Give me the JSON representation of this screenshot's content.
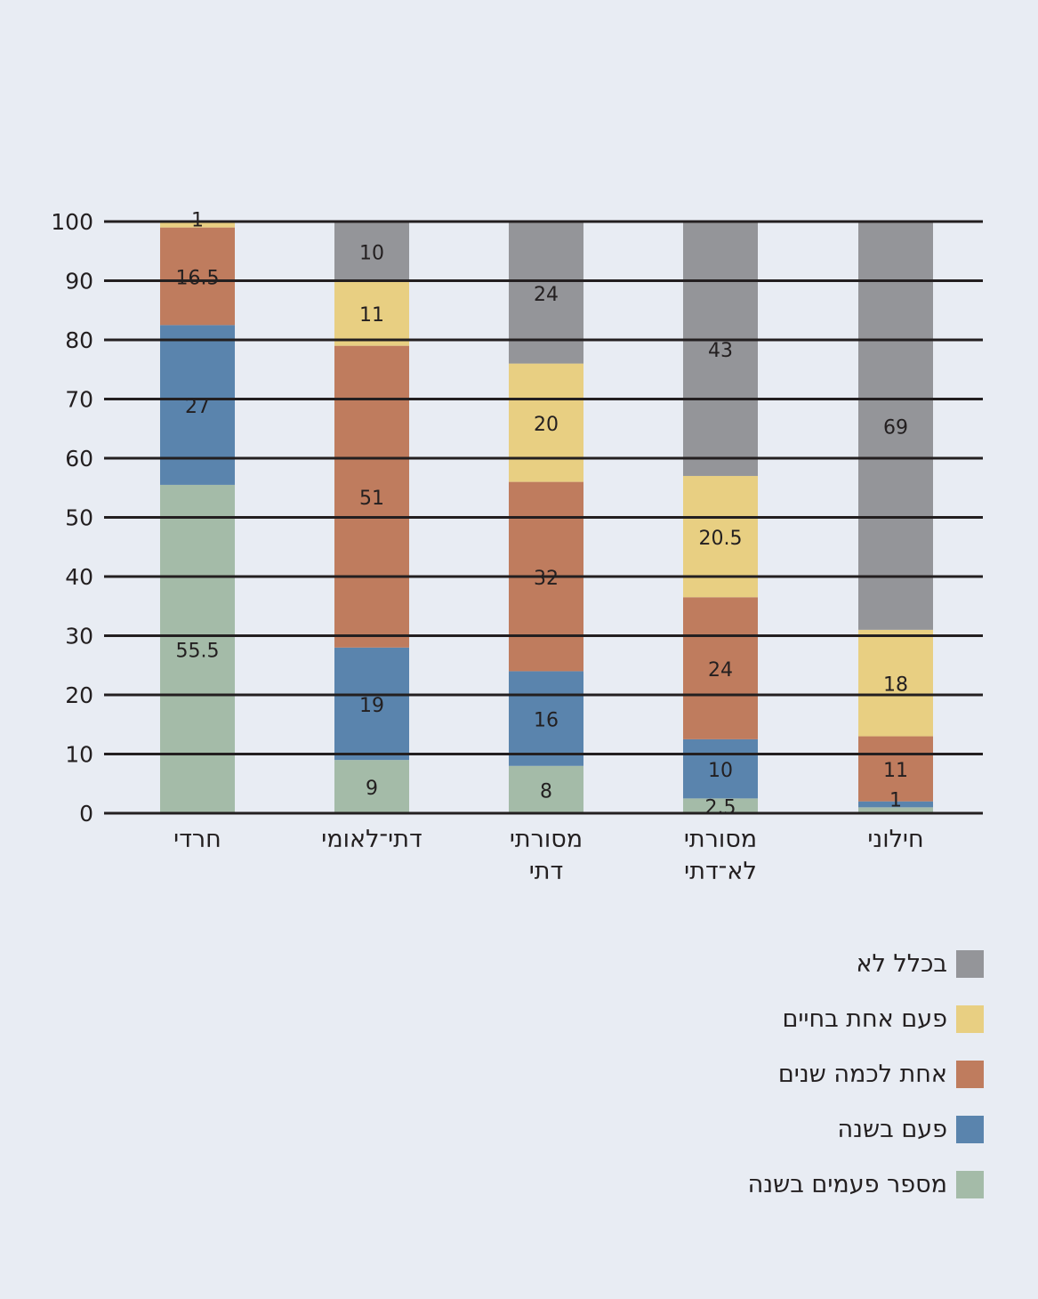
{
  "chart_data": {
    "type": "bar",
    "stacked": true,
    "title": "",
    "xlabel": "",
    "ylabel": "",
    "ylim": [
      0,
      100
    ],
    "yticks": [
      "0",
      "10",
      "20",
      "30",
      "40",
      "50",
      "60",
      "70",
      "80",
      "90",
      "100"
    ],
    "grid": true,
    "legend_position": "bottom-right",
    "categories": [
      {
        "lines": [
          "חרדי"
        ]
      },
      {
        "lines": [
          "דתי־לאומי"
        ]
      },
      {
        "lines": [
          "מסורתי",
          "דתי"
        ]
      },
      {
        "lines": [
          "מסורתי",
          "לא־דתי"
        ]
      },
      {
        "lines": [
          "חילוני"
        ]
      }
    ],
    "series": [
      {
        "name": "מספר פעמים בשנה",
        "color": "#a4bba8",
        "values": [
          55.5,
          9,
          8,
          2.5,
          1
        ],
        "labels": [
          "55.5",
          "9",
          "8",
          "2.5",
          ""
        ]
      },
      {
        "name": "פעם בשנה",
        "color": "#5a84ad",
        "values": [
          27,
          19,
          16,
          10,
          1
        ],
        "labels": [
          "27",
          "19",
          "16",
          "10",
          "1"
        ]
      },
      {
        "name": "אחת לכמה שנים",
        "color": "#bf7c5e",
        "values": [
          16.5,
          51,
          32,
          24,
          11
        ],
        "labels": [
          "16.5",
          "51",
          "32",
          "24",
          "11"
        ]
      },
      {
        "name": "פעם אחת בחיים",
        "color": "#e8cf82",
        "values": [
          1,
          11,
          20,
          20.5,
          18
        ],
        "labels": [
          "1",
          "11",
          "20",
          "20.5",
          "18"
        ]
      },
      {
        "name": "בכלל לא",
        "color": "#949599",
        "values": [
          0,
          10,
          24,
          43,
          69
        ],
        "labels": [
          "",
          "10",
          "24",
          "43",
          "69"
        ]
      }
    ]
  },
  "legend_order": [
    4,
    3,
    2,
    1,
    0
  ]
}
